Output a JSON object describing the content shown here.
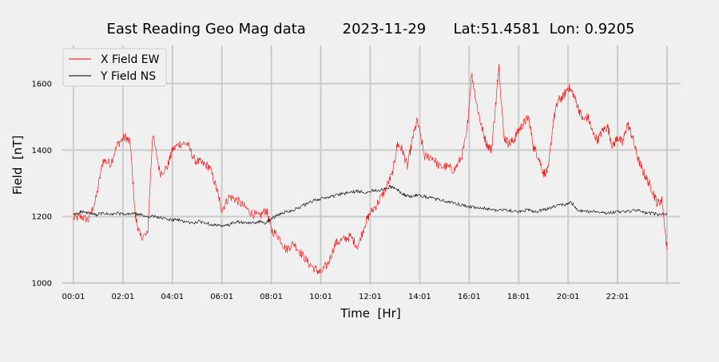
{
  "chart_data": {
    "type": "line",
    "title": "East Reading Geo Mag data        2023-11-29      Lat:51.4581  Lon: 0.9205",
    "xlabel": "Time  [Hr]",
    "ylabel": "Field  [nT]",
    "xlim": [
      -0.45,
      24.55
    ],
    "ylim": [
      995,
      1715
    ],
    "x_ticks": [
      0,
      2,
      4,
      6,
      8,
      10,
      12,
      14,
      16,
      18,
      20,
      22,
      24
    ],
    "x_tick_labels": [
      "00:01",
      "02:01",
      "04:01",
      "06:01",
      "08:01",
      "10:01",
      "12:01",
      "14:01",
      "16:01",
      "18:01",
      "20:01",
      "22:01",
      ""
    ],
    "y_ticks": [
      1000,
      1200,
      1400,
      1600
    ],
    "y_tick_labels": [
      "1000",
      "1200",
      "1400",
      "1600"
    ],
    "grid": true,
    "legend_position": "top-left",
    "series": [
      {
        "name": "X Field EW",
        "color": "#ff0000",
        "x": [
          0.0,
          0.3,
          0.6,
          0.9,
          1.2,
          1.5,
          1.8,
          2.1,
          2.3,
          2.5,
          2.7,
          3.0,
          3.2,
          3.5,
          3.8,
          4.0,
          4.3,
          4.6,
          4.9,
          5.2,
          5.5,
          5.8,
          6.0,
          6.3,
          6.6,
          6.9,
          7.2,
          7.5,
          7.8,
          8.0,
          8.3,
          8.6,
          8.9,
          9.2,
          9.5,
          9.8,
          10.0,
          10.3,
          10.6,
          10.9,
          11.2,
          11.5,
          11.8,
          12.0,
          12.3,
          12.6,
          12.9,
          13.1,
          13.3,
          13.5,
          13.7,
          13.9,
          14.2,
          14.5,
          14.8,
          15.1,
          15.4,
          15.7,
          15.9,
          16.1,
          16.3,
          16.5,
          16.7,
          16.9,
          17.1,
          17.2,
          17.4,
          17.6,
          17.8,
          18.0,
          18.2,
          18.4,
          18.6,
          18.8,
          19.0,
          19.2,
          19.4,
          19.6,
          19.8,
          20.0,
          20.2,
          20.4,
          20.6,
          20.8,
          21.0,
          21.2,
          21.4,
          21.6,
          21.8,
          22.0,
          22.2,
          22.4,
          22.6,
          22.8,
          23.0,
          23.2,
          23.4,
          23.6,
          23.8,
          24.0
        ],
        "values": [
          1195,
          1200,
          1190,
          1250,
          1370,
          1360,
          1420,
          1440,
          1420,
          1200,
          1140,
          1145,
          1450,
          1330,
          1350,
          1400,
          1420,
          1420,
          1370,
          1360,
          1350,
          1280,
          1220,
          1260,
          1250,
          1230,
          1210,
          1200,
          1220,
          1160,
          1140,
          1100,
          1120,
          1090,
          1060,
          1040,
          1030,
          1060,
          1120,
          1130,
          1140,
          1110,
          1180,
          1210,
          1240,
          1280,
          1330,
          1420,
          1400,
          1350,
          1430,
          1490,
          1380,
          1380,
          1350,
          1350,
          1340,
          1380,
          1450,
          1630,
          1540,
          1470,
          1420,
          1400,
          1560,
          1660,
          1440,
          1420,
          1430,
          1460,
          1480,
          1500,
          1410,
          1380,
          1330,
          1340,
          1490,
          1550,
          1560,
          1590,
          1570,
          1530,
          1490,
          1500,
          1450,
          1430,
          1460,
          1470,
          1410,
          1440,
          1420,
          1480,
          1440,
          1380,
          1340,
          1310,
          1280,
          1240,
          1250,
          1100
        ]
      },
      {
        "name": "Y Field NS",
        "color": "#000000",
        "x": [
          0.0,
          0.3,
          0.6,
          0.9,
          1.2,
          1.5,
          1.8,
          2.1,
          2.4,
          2.7,
          3.0,
          3.3,
          3.6,
          3.9,
          4.2,
          4.5,
          4.8,
          5.1,
          5.4,
          5.7,
          6.0,
          6.3,
          6.6,
          6.9,
          7.2,
          7.5,
          7.8,
          8.0,
          8.3,
          8.6,
          8.9,
          9.2,
          9.5,
          9.8,
          10.1,
          10.4,
          10.7,
          11.0,
          11.3,
          11.6,
          11.9,
          12.2,
          12.5,
          12.8,
          13.0,
          13.2,
          13.4,
          13.6,
          13.9,
          14.2,
          14.5,
          14.8,
          15.1,
          15.4,
          15.7,
          16.0,
          16.3,
          16.6,
          16.9,
          17.2,
          17.5,
          17.8,
          18.1,
          18.4,
          18.7,
          19.0,
          19.3,
          19.6,
          19.9,
          20.1,
          20.4,
          20.7,
          21.0,
          21.3,
          21.6,
          21.9,
          22.2,
          22.5,
          22.8,
          23.1,
          23.4,
          23.7,
          24.0
        ],
        "values": [
          1205,
          1215,
          1210,
          1205,
          1210,
          1205,
          1210,
          1205,
          1210,
          1205,
          1200,
          1200,
          1195,
          1190,
          1190,
          1185,
          1180,
          1185,
          1180,
          1175,
          1170,
          1175,
          1185,
          1180,
          1180,
          1185,
          1180,
          1195,
          1205,
          1215,
          1220,
          1230,
          1240,
          1250,
          1255,
          1260,
          1265,
          1270,
          1275,
          1275,
          1275,
          1280,
          1280,
          1290,
          1285,
          1275,
          1265,
          1260,
          1265,
          1260,
          1255,
          1250,
          1245,
          1240,
          1235,
          1230,
          1225,
          1225,
          1220,
          1220,
          1220,
          1215,
          1215,
          1220,
          1215,
          1220,
          1225,
          1235,
          1235,
          1245,
          1220,
          1215,
          1215,
          1215,
          1210,
          1215,
          1215,
          1215,
          1220,
          1210,
          1210,
          1205,
          1210
        ]
      }
    ]
  }
}
